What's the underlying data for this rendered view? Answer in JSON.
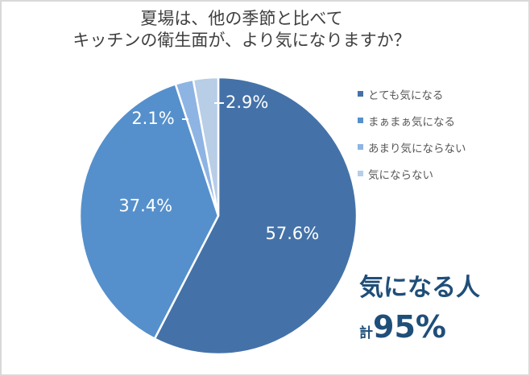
{
  "title": {
    "line1": "夏場は、他の季節と比べて",
    "line2": "キッチンの衛生面が、より気になりますか？"
  },
  "chart_data": {
    "type": "pie",
    "title": "夏場は、他の季節と比べてキッチンの衛生面が、より気になりますか？",
    "slices": [
      {
        "name": "とても気になる",
        "value": 57.6,
        "label": "57.6%",
        "color": "#4472a8"
      },
      {
        "name": "まぁまぁ気になる",
        "value": 37.4,
        "label": "37.4%",
        "color": "#5590cc"
      },
      {
        "name": "あまり気にならない",
        "value": 2.1,
        "label": "2.1%",
        "color": "#8eb4e3"
      },
      {
        "name": "気にならない",
        "value": 2.9,
        "label": "2.9%",
        "color": "#b8cde6"
      }
    ],
    "legend_position": "right",
    "start_angle": "12 o'clock, clockwise"
  },
  "legend": [
    {
      "label": "とても気になる",
      "color": "#4472a8"
    },
    {
      "label": "まぁまぁ気になる",
      "color": "#5590cc"
    },
    {
      "label": "あまり気にならない",
      "color": "#8eb4e3"
    },
    {
      "label": "気にならない",
      "color": "#b8cde6"
    }
  ],
  "summary": {
    "main": "気になる人",
    "prefix": "計",
    "percent": "95%"
  }
}
